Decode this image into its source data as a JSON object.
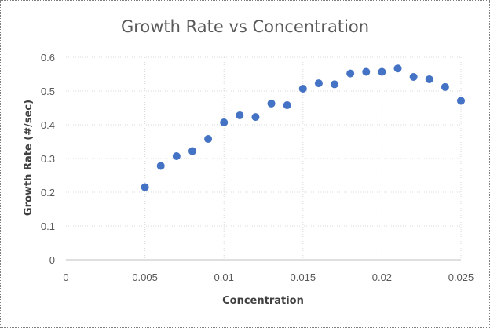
{
  "chart_data": {
    "type": "scatter",
    "title": "Growth Rate vs Concentration",
    "xlabel": "Concentration",
    "ylabel": "Growth Rate (#/sec)",
    "xlim": [
      0,
      0.025
    ],
    "ylim": [
      0,
      0.6
    ],
    "x_ticks": [
      "0",
      "0.005",
      "0.01",
      "0.015",
      "0.02",
      "0.025"
    ],
    "y_ticks": [
      "0",
      "0.1",
      "0.2",
      "0.3",
      "0.4",
      "0.5",
      "0.6"
    ],
    "grid": true,
    "marker_color": "#4472c4",
    "points": [
      {
        "x": 0.005,
        "y": 0.215
      },
      {
        "x": 0.006,
        "y": 0.278
      },
      {
        "x": 0.007,
        "y": 0.307
      },
      {
        "x": 0.008,
        "y": 0.322
      },
      {
        "x": 0.009,
        "y": 0.358
      },
      {
        "x": 0.01,
        "y": 0.407
      },
      {
        "x": 0.011,
        "y": 0.428
      },
      {
        "x": 0.012,
        "y": 0.423
      },
      {
        "x": 0.013,
        "y": 0.463
      },
      {
        "x": 0.014,
        "y": 0.458
      },
      {
        "x": 0.015,
        "y": 0.507
      },
      {
        "x": 0.016,
        "y": 0.523
      },
      {
        "x": 0.017,
        "y": 0.52
      },
      {
        "x": 0.018,
        "y": 0.552
      },
      {
        "x": 0.019,
        "y": 0.557
      },
      {
        "x": 0.02,
        "y": 0.557
      },
      {
        "x": 0.021,
        "y": 0.567
      },
      {
        "x": 0.022,
        "y": 0.542
      },
      {
        "x": 0.023,
        "y": 0.535
      },
      {
        "x": 0.024,
        "y": 0.512
      },
      {
        "x": 0.025,
        "y": 0.471
      }
    ]
  }
}
